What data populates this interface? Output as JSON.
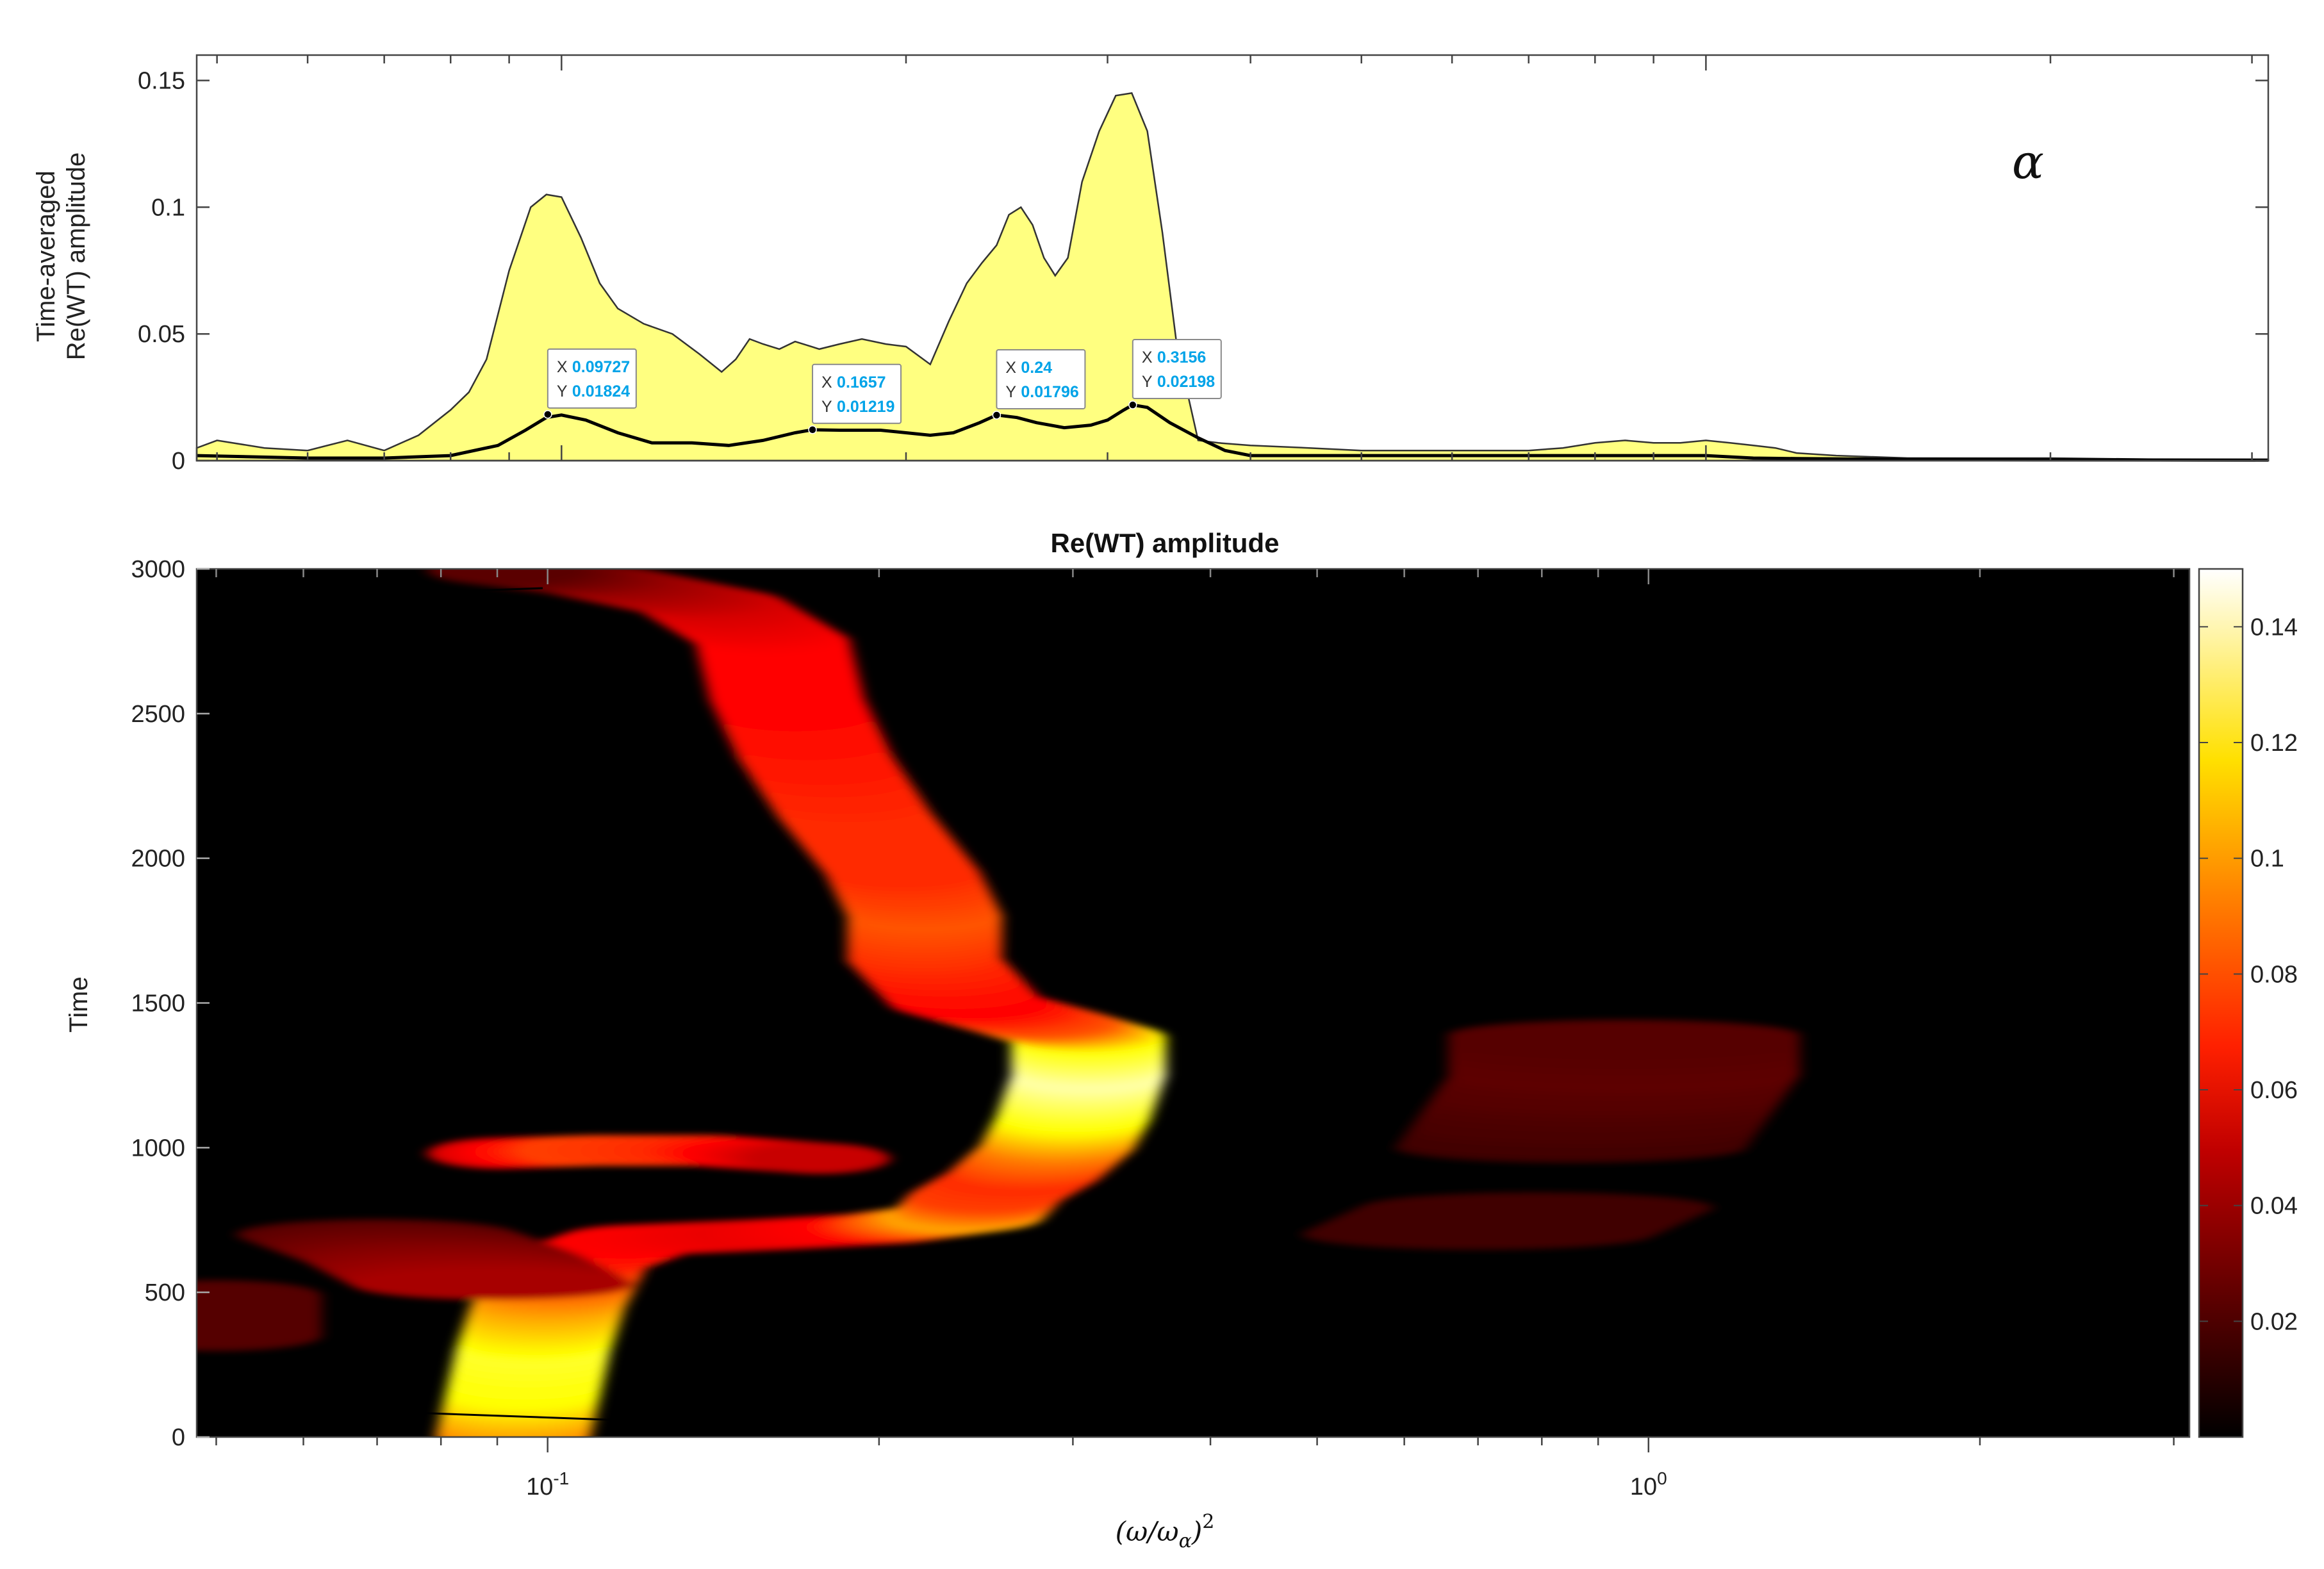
{
  "chart_data": [
    {
      "type": "area",
      "panel": "time-averaged",
      "ylabel_lines": [
        "Time-averaged",
        "Re(WT) amplitude"
      ],
      "annotation_symbol": "α",
      "xscale": "log",
      "xlim": [
        0.048,
        3.1
      ],
      "ylim": [
        0,
        0.16
      ],
      "yticks": [
        0,
        0.05,
        0.1,
        0.15
      ],
      "ytick_labels": [
        "0",
        "0.05",
        "0.1",
        "0.15"
      ],
      "series": [
        {
          "style": "filled-yellow",
          "x": [
            0.048,
            0.05,
            0.055,
            0.06,
            0.065,
            0.07,
            0.075,
            0.08,
            0.083,
            0.086,
            0.09,
            0.094,
            0.097,
            0.1,
            0.104,
            0.108,
            0.112,
            0.118,
            0.125,
            0.132,
            0.138,
            0.142,
            0.146,
            0.15,
            0.155,
            0.16,
            0.168,
            0.175,
            0.183,
            0.192,
            0.2,
            0.21,
            0.218,
            0.226,
            0.233,
            0.24,
            0.246,
            0.252,
            0.258,
            0.264,
            0.27,
            0.277,
            0.285,
            0.295,
            0.305,
            0.315,
            0.325,
            0.335,
            0.345,
            0.36,
            0.375,
            0.4,
            0.45,
            0.5,
            0.55,
            0.6,
            0.65,
            0.7,
            0.75,
            0.8,
            0.85,
            0.9,
            0.95,
            1.0,
            1.05,
            1.1,
            1.15,
            1.2,
            1.3,
            1.5,
            2.0,
            2.5,
            3.1
          ],
          "y": [
            0.005,
            0.008,
            0.005,
            0.004,
            0.008,
            0.004,
            0.01,
            0.02,
            0.027,
            0.04,
            0.075,
            0.1,
            0.105,
            0.104,
            0.088,
            0.07,
            0.06,
            0.054,
            0.05,
            0.042,
            0.035,
            0.04,
            0.048,
            0.046,
            0.044,
            0.047,
            0.044,
            0.046,
            0.048,
            0.046,
            0.045,
            0.038,
            0.055,
            0.07,
            0.078,
            0.085,
            0.097,
            0.1,
            0.093,
            0.08,
            0.073,
            0.08,
            0.11,
            0.13,
            0.144,
            0.145,
            0.13,
            0.09,
            0.045,
            0.008,
            0.007,
            0.006,
            0.005,
            0.004,
            0.004,
            0.004,
            0.004,
            0.004,
            0.005,
            0.007,
            0.008,
            0.007,
            0.007,
            0.008,
            0.007,
            0.006,
            0.005,
            0.003,
            0.002,
            0.001,
            0.001,
            0.0005,
            0.0005
          ]
        },
        {
          "style": "black-line",
          "x": [
            0.048,
            0.06,
            0.07,
            0.08,
            0.088,
            0.093,
            0.097,
            0.1,
            0.105,
            0.112,
            0.12,
            0.13,
            0.14,
            0.15,
            0.16,
            0.1657,
            0.175,
            0.19,
            0.2,
            0.21,
            0.22,
            0.232,
            0.24,
            0.25,
            0.26,
            0.275,
            0.29,
            0.3,
            0.31,
            0.3156,
            0.325,
            0.34,
            0.36,
            0.38,
            0.4,
            0.45,
            0.5,
            0.6,
            0.7,
            0.8,
            0.9,
            1.0,
            1.1,
            1.2,
            1.5,
            2.0,
            3.1
          ],
          "y": [
            0.002,
            0.001,
            0.001,
            0.002,
            0.006,
            0.012,
            0.017,
            0.018,
            0.016,
            0.011,
            0.007,
            0.007,
            0.006,
            0.008,
            0.011,
            0.01219,
            0.012,
            0.012,
            0.011,
            0.01,
            0.011,
            0.015,
            0.018,
            0.017,
            0.015,
            0.013,
            0.014,
            0.016,
            0.02,
            0.02198,
            0.021,
            0.015,
            0.009,
            0.004,
            0.002,
            0.002,
            0.002,
            0.002,
            0.002,
            0.002,
            0.002,
            0.002,
            0.001,
            0.0008,
            0.0005,
            0.0003,
            0.0002
          ]
        }
      ],
      "datatips": [
        {
          "x": 0.09727,
          "y": 0.01824,
          "x_text": "0.09727",
          "y_text": "0.01824",
          "x_key": "X",
          "y_key": "Y"
        },
        {
          "x": 0.1657,
          "y": 0.01219,
          "x_text": "0.1657",
          "y_text": "0.01219",
          "x_key": "X",
          "y_key": "Y"
        },
        {
          "x": 0.24,
          "y": 0.01796,
          "x_text": "0.24",
          "y_text": "0.01796",
          "x_key": "X",
          "y_key": "Y"
        },
        {
          "x": 0.3156,
          "y": 0.02198,
          "x_text": "0.3156",
          "y_text": "0.02198",
          "x_key": "X",
          "y_key": "Y"
        }
      ]
    },
    {
      "type": "heatmap",
      "panel": "wavelet-map",
      "title": "Re(WT) amplitude",
      "ylabel": "Time",
      "xlabel": "(ω/ω_α)²",
      "xscale": "log",
      "xlim": [
        0.048,
        3.1
      ],
      "ylim": [
        0,
        3000
      ],
      "yticks": [
        0,
        500,
        1000,
        1500,
        2000,
        2500,
        3000
      ],
      "ytick_labels": [
        "0",
        "500",
        "1000",
        "1500",
        "2000",
        "2500",
        "3000"
      ],
      "xticks": [
        0.1,
        1.0
      ],
      "xtick_base": "10",
      "xtick_exponents": [
        "-1",
        "0"
      ],
      "colormap": "hot",
      "clim": [
        0,
        0.15
      ],
      "colorbar_ticks": [
        0.02,
        0.04,
        0.06,
        0.08,
        0.1,
        0.12,
        0.14
      ],
      "colorbar_tick_labels": [
        "0.02",
        "0.04",
        "0.06",
        "0.08",
        "0.1",
        "0.12",
        "0.14"
      ],
      "ridges": [
        {
          "points": [
            [
              0.093,
              0
            ],
            [
              0.095,
              150
            ],
            [
              0.097,
              300
            ],
            [
              0.1,
              450
            ],
            [
              0.105,
              600
            ],
            [
              0.12,
              680
            ],
            [
              0.16,
              700
            ],
            [
              0.2,
              720
            ],
            [
              0.24,
              760
            ],
            [
              0.25,
              830
            ],
            [
              0.27,
              900
            ],
            [
              0.29,
              1000
            ],
            [
              0.3,
              1100
            ],
            [
              0.31,
              1250
            ],
            [
              0.31,
              1380
            ],
            [
              0.28,
              1430
            ],
            [
              0.24,
              1500
            ],
            [
              0.22,
              1650
            ],
            [
              0.22,
              1800
            ],
            [
              0.21,
              1950
            ],
            [
              0.19,
              2150
            ],
            [
              0.175,
              2350
            ],
            [
              0.165,
              2550
            ],
            [
              0.16,
              2750
            ],
            [
              0.14,
              2880
            ],
            [
              0.11,
              2960
            ],
            [
              0.09,
              3000
            ]
          ],
          "amplitude": [
            0.09,
            0.12,
            0.125,
            0.1,
            0.07,
            0.06,
            0.055,
            0.06,
            0.1,
            0.075,
            0.07,
            0.09,
            0.12,
            0.14,
            0.12,
            0.08,
            0.06,
            0.07,
            0.08,
            0.07,
            0.07,
            0.065,
            0.06,
            0.06,
            0.05,
            0.035,
            0.02
          ],
          "width": 0.022
        },
        {
          "points": [
            [
              0.09,
              980
            ],
            [
              0.11,
              990
            ],
            [
              0.14,
              990
            ],
            [
              0.18,
              960
            ]
          ],
          "amplitude": [
            0.05,
            0.075,
            0.07,
            0.045
          ],
          "width": 0.02
        },
        {
          "points": [
            [
              0.07,
              700
            ],
            [
              0.08,
              620
            ],
            [
              0.09,
              520
            ]
          ],
          "amplitude": [
            0.02,
            0.03,
            0.04
          ],
          "width": 0.04
        },
        {
          "points": [
            [
              0.05,
              350
            ],
            [
              0.05,
              500
            ]
          ],
          "amplitude": [
            0.02,
            0.02
          ],
          "width": 0.03
        },
        {
          "points": [
            [
              0.85,
              1000
            ],
            [
              0.95,
              1250
            ],
            [
              0.95,
              1400
            ]
          ],
          "amplitude": [
            0.015,
            0.022,
            0.02
          ],
          "width": 0.05
        },
        {
          "points": [
            [
              0.7,
              700
            ],
            [
              0.8,
              800
            ]
          ],
          "amplitude": [
            0.015,
            0.015
          ],
          "width": 0.05
        }
      ]
    }
  ]
}
